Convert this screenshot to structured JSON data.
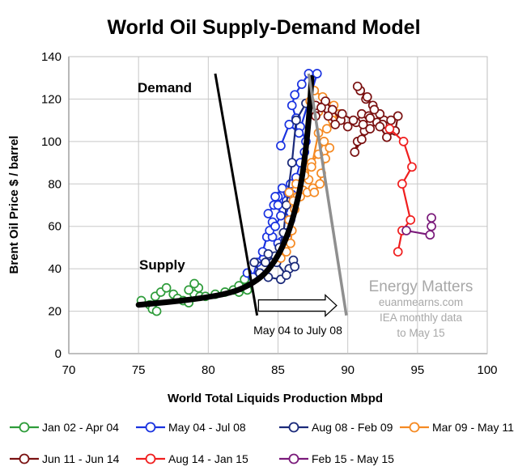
{
  "chart_data": {
    "type": "scatter",
    "title": "World Oil Supply-Demand Model",
    "xlabel": "World Total Liquids Production Mbpd",
    "ylabel": "Brent Oil Price $ / barrel",
    "xlim": [
      70,
      100
    ],
    "ylim": [
      0,
      140
    ],
    "xticks": [
      70,
      75,
      80,
      85,
      90,
      95,
      100
    ],
    "yticks": [
      0,
      20,
      40,
      60,
      80,
      100,
      120,
      140
    ],
    "grid": true,
    "legend_position": "bottom",
    "series": [
      {
        "name": "Jan 02 - Apr 04",
        "color": "#2e9c3a",
        "points": [
          [
            75.2,
            25
          ],
          [
            75.8,
            23
          ],
          [
            76.0,
            21
          ],
          [
            76.3,
            20
          ],
          [
            76.2,
            27
          ],
          [
            76.6,
            29
          ],
          [
            77.0,
            31
          ],
          [
            77.5,
            28
          ],
          [
            77.8,
            26
          ],
          [
            78.2,
            25
          ],
          [
            78.6,
            24
          ],
          [
            79.0,
            28
          ],
          [
            79.3,
            31
          ],
          [
            79.0,
            33
          ],
          [
            78.6,
            30
          ],
          [
            79.4,
            27
          ],
          [
            79.8,
            27
          ],
          [
            80.5,
            28
          ],
          [
            81.2,
            29
          ],
          [
            81.8,
            30
          ],
          [
            82.2,
            29
          ],
          [
            82.5,
            31
          ],
          [
            82.8,
            30
          ],
          [
            82.6,
            35
          ],
          [
            82.2,
            32
          ]
        ]
      },
      {
        "name": "May 04 - Jul 08",
        "color": "#1a33e0",
        "points": [
          [
            82.8,
            38
          ],
          [
            83.2,
            36
          ],
          [
            83.5,
            43
          ],
          [
            83.9,
            48
          ],
          [
            84.2,
            55
          ],
          [
            84.6,
            62
          ],
          [
            84.3,
            66
          ],
          [
            84.7,
            70
          ],
          [
            85.0,
            74
          ],
          [
            85.4,
            68
          ],
          [
            85.9,
            63
          ],
          [
            85.7,
            57
          ],
          [
            85.3,
            53
          ],
          [
            85.0,
            52
          ],
          [
            84.6,
            55
          ],
          [
            84.4,
            58
          ],
          [
            84.8,
            60
          ],
          [
            85.2,
            65
          ],
          [
            85.0,
            70
          ],
          [
            84.8,
            74
          ],
          [
            85.3,
            78
          ],
          [
            85.6,
            72
          ],
          [
            86.0,
            75
          ],
          [
            85.9,
            80
          ],
          [
            86.3,
            83
          ],
          [
            86.6,
            90
          ],
          [
            86.9,
            95
          ],
          [
            87.0,
            100
          ],
          [
            86.6,
            107
          ],
          [
            86.3,
            111
          ],
          [
            86.0,
            117
          ],
          [
            86.2,
            122
          ],
          [
            86.7,
            127
          ],
          [
            87.2,
            132
          ],
          [
            87.8,
            132
          ],
          [
            86.5,
            104
          ],
          [
            85.8,
            108
          ],
          [
            85.2,
            98
          ]
        ]
      },
      {
        "name": "Aug 08 - Feb 09",
        "color": "#1b2a7a",
        "points": [
          [
            87.0,
            118
          ],
          [
            86.3,
            110
          ],
          [
            86.0,
            90
          ],
          [
            85.6,
            70
          ],
          [
            85.4,
            57
          ],
          [
            85.1,
            50
          ],
          [
            84.8,
            46
          ],
          [
            84.1,
            43
          ],
          [
            83.3,
            43
          ],
          [
            83.7,
            38
          ],
          [
            84.3,
            36
          ],
          [
            85.2,
            35
          ],
          [
            85.8,
            40
          ],
          [
            86.1,
            44
          ],
          [
            86.2,
            41
          ],
          [
            85.6,
            37
          ],
          [
            84.9,
            43
          ],
          [
            84.3,
            47
          ]
        ]
      },
      {
        "name": "Mar 09 - May 11",
        "color": "#f58a23",
        "points": [
          [
            85.2,
            45
          ],
          [
            85.6,
            48
          ],
          [
            85.9,
            52
          ],
          [
            86.0,
            58
          ],
          [
            85.8,
            63
          ],
          [
            86.2,
            68
          ],
          [
            86.4,
            74
          ],
          [
            86.8,
            77
          ],
          [
            87.1,
            76
          ],
          [
            87.5,
            78
          ],
          [
            87.2,
            82
          ],
          [
            86.9,
            85
          ],
          [
            87.4,
            90
          ],
          [
            87.9,
            94
          ],
          [
            88.3,
            100
          ],
          [
            88.7,
            97
          ],
          [
            88.4,
            92
          ],
          [
            88.1,
            85
          ],
          [
            88.0,
            80
          ],
          [
            87.6,
            76
          ],
          [
            86.6,
            74
          ],
          [
            86.1,
            72
          ],
          [
            85.8,
            76
          ],
          [
            86.3,
            80
          ],
          [
            86.9,
            84
          ],
          [
            87.4,
            88
          ],
          [
            87.9,
            104
          ],
          [
            88.5,
            106
          ],
          [
            88.9,
            110
          ],
          [
            89.4,
            113
          ],
          [
            89.0,
            117
          ],
          [
            88.2,
            121
          ],
          [
            87.6,
            124
          ],
          [
            87.3,
            119
          ],
          [
            87.9,
            114
          ]
        ]
      },
      {
        "name": "Jun 11 - Jun 14",
        "color": "#7a1111",
        "points": [
          [
            87.7,
            117
          ],
          [
            88.4,
            119
          ],
          [
            88.9,
            115
          ],
          [
            89.5,
            110
          ],
          [
            90.0,
            107
          ],
          [
            90.6,
            109
          ],
          [
            91.0,
            113
          ],
          [
            91.5,
            112
          ],
          [
            91.2,
            105
          ],
          [
            90.7,
            100
          ],
          [
            90.5,
            95
          ],
          [
            91.0,
            101
          ],
          [
            91.6,
            106
          ],
          [
            92.1,
            109
          ],
          [
            92.6,
            110
          ],
          [
            92.3,
            113
          ],
          [
            91.8,
            117
          ],
          [
            91.3,
            120
          ],
          [
            90.9,
            124
          ],
          [
            90.7,
            126
          ],
          [
            91.4,
            121
          ],
          [
            91.9,
            115
          ],
          [
            92.5,
            108
          ],
          [
            93.1,
            110
          ],
          [
            93.6,
            112
          ],
          [
            93.4,
            105
          ],
          [
            92.8,
            102
          ],
          [
            92.3,
            107
          ],
          [
            91.6,
            111
          ],
          [
            91.1,
            108
          ],
          [
            90.4,
            110
          ],
          [
            89.6,
            113
          ],
          [
            89.1,
            108
          ],
          [
            88.6,
            112
          ],
          [
            88.1,
            116
          ],
          [
            87.7,
            112
          ]
        ]
      },
      {
        "name": "Aug 14 - Jan 15",
        "color": "#f01e1e",
        "points": [
          [
            93.0,
            106
          ],
          [
            94.0,
            100
          ],
          [
            94.6,
            88
          ],
          [
            93.9,
            80
          ],
          [
            94.5,
            63
          ],
          [
            93.9,
            58
          ],
          [
            93.6,
            48
          ]
        ]
      },
      {
        "name": "Feb 15 - May 15",
        "color": "#7a1a7a",
        "points": [
          [
            94.2,
            58
          ],
          [
            95.9,
            56
          ],
          [
            96.0,
            60
          ],
          [
            96.0,
            64
          ]
        ]
      }
    ],
    "supply_curve": {
      "label": "Supply",
      "color": "#000000",
      "points": [
        [
          75,
          23
        ],
        [
          77,
          24.2
        ],
        [
          79,
          25.7
        ],
        [
          80.5,
          27.2
        ],
        [
          81.5,
          28.6
        ],
        [
          82.5,
          30.8
        ],
        [
          83.5,
          34.6
        ],
        [
          84.2,
          38.6
        ],
        [
          84.8,
          44
        ],
        [
          85.3,
          50
        ],
        [
          85.8,
          58
        ],
        [
          86.2,
          67
        ],
        [
          86.6,
          78
        ],
        [
          86.9,
          91
        ],
        [
          87.1,
          103
        ],
        [
          87.3,
          118
        ],
        [
          87.4,
          130
        ]
      ]
    },
    "demand_curve": {
      "label": "Demand",
      "color": "#000000",
      "points": [
        [
          80.5,
          132
        ],
        [
          83.5,
          18
        ]
      ]
    },
    "shifted_demand_curve": {
      "color": "#8f8f8f",
      "points": [
        [
          87.2,
          132
        ],
        [
          89.9,
          18
        ]
      ]
    },
    "arrow": {
      "label": "May 04 to July 08",
      "from": [
        83.6,
        20
      ],
      "to": [
        89.2,
        20
      ]
    },
    "annotation": {
      "brand": "Energy Matters",
      "site": "euanmearns.com",
      "line1": "IEA monthly data",
      "line2": "to May 15"
    }
  }
}
